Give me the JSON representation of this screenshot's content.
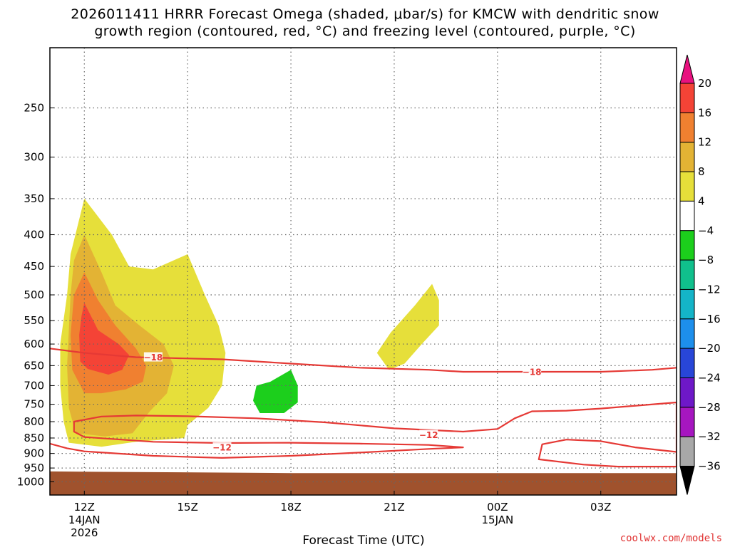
{
  "title_line1": "2026011411 HRRR Forecast Omega (shaded, μbar/s) for KMCW with dendritic snow",
  "title_line2": "growth region (contoured, red, °C) and freezing level (contoured, purple, °C)",
  "chart_data": {
    "type": "time-height cross section",
    "title": "2026011411 HRRR Forecast Omega (shaded, μbar/s) for KMCW with dendritic snow growth region (contoured, red, °C) and freezing level (contoured, purple, °C)",
    "xlabel": "Forecast Time (UTC)",
    "ylabel": "",
    "x_range_hours_since_14JAN_12Z": [
      -1,
      17.2
    ],
    "y_range_mb": [
      200,
      1050
    ],
    "grid": true,
    "x_ticks": [
      {
        "hour": 0,
        "label": "12Z",
        "sub1": "14JAN",
        "sub2": "2026"
      },
      {
        "hour": 3,
        "label": "15Z",
        "sub1": "",
        "sub2": ""
      },
      {
        "hour": 6,
        "label": "18Z",
        "sub1": "",
        "sub2": ""
      },
      {
        "hour": 9,
        "label": "21Z",
        "sub1": "",
        "sub2": ""
      },
      {
        "hour": 12,
        "label": "00Z",
        "sub1": "15JAN",
        "sub2": ""
      },
      {
        "hour": 15,
        "label": "03Z",
        "sub1": "",
        "sub2": ""
      }
    ],
    "y_ticks": [
      250,
      300,
      350,
      400,
      450,
      500,
      550,
      600,
      650,
      700,
      750,
      800,
      850,
      900,
      950,
      1000
    ],
    "colorbar": {
      "labels": [
        "20",
        "16",
        "12",
        "8",
        "4",
        "−4",
        "−8",
        "−12",
        "−16",
        "−20",
        "−24",
        "−28",
        "−32",
        "−36"
      ],
      "colors": [
        "#e8117f",
        "#f44336",
        "#f08030",
        "#e3b334",
        "#e6df3a",
        "#ffffff",
        "#1ccf1c",
        "#10c08c",
        "#14b4c8",
        "#1d8fec",
        "#2846d8",
        "#6e18c8",
        "#a616c0",
        "#a8a8a8",
        "#000000"
      ]
    },
    "omega_regions": [
      {
        "level": "4 to 8",
        "color": "#e6df3a",
        "polygon": [
          [
            0.0,
            350
          ],
          [
            0.8,
            400
          ],
          [
            1.3,
            450
          ],
          [
            2.0,
            455
          ],
          [
            3.0,
            430
          ],
          [
            3.5,
            500
          ],
          [
            3.9,
            560
          ],
          [
            4.1,
            620
          ],
          [
            4.0,
            700
          ],
          [
            3.6,
            760
          ],
          [
            3.0,
            810
          ],
          [
            2.9,
            850
          ],
          [
            1.5,
            862
          ],
          [
            0.5,
            878
          ],
          [
            -0.45,
            865
          ],
          [
            -0.6,
            800
          ],
          [
            -0.7,
            700
          ],
          [
            -0.7,
            600
          ],
          [
            -0.5,
            500
          ],
          [
            -0.4,
            430
          ]
        ]
      },
      {
        "level": "8 to 12",
        "color": "#e3b334",
        "polygon": [
          [
            0.0,
            400
          ],
          [
            0.5,
            460
          ],
          [
            0.9,
            520
          ],
          [
            1.6,
            560
          ],
          [
            2.3,
            600
          ],
          [
            2.6,
            650
          ],
          [
            2.4,
            720
          ],
          [
            1.9,
            770
          ],
          [
            1.4,
            835
          ],
          [
            0.6,
            845
          ],
          [
            -0.25,
            835
          ],
          [
            -0.45,
            760
          ],
          [
            -0.5,
            650
          ],
          [
            -0.4,
            500
          ],
          [
            -0.3,
            440
          ]
        ]
      },
      {
        "level": "12 to 16",
        "color": "#f08030",
        "polygon": [
          [
            0.0,
            460
          ],
          [
            0.4,
            510
          ],
          [
            0.9,
            560
          ],
          [
            1.5,
            610
          ],
          [
            1.8,
            650
          ],
          [
            1.7,
            690
          ],
          [
            1.2,
            710
          ],
          [
            0.5,
            720
          ],
          [
            0.0,
            720
          ],
          [
            -0.35,
            660
          ],
          [
            -0.4,
            580
          ],
          [
            -0.3,
            500
          ]
        ]
      },
      {
        "level": "16 to 20",
        "color": "#f44336",
        "polygon": [
          [
            0.0,
            515
          ],
          [
            0.4,
            570
          ],
          [
            1.0,
            600
          ],
          [
            1.3,
            625
          ],
          [
            1.1,
            660
          ],
          [
            0.7,
            672
          ],
          [
            0.1,
            658
          ],
          [
            -0.12,
            640
          ],
          [
            -0.15,
            580
          ],
          [
            -0.08,
            540
          ]
        ]
      },
      {
        "level": "4 to 8",
        "color": "#e6df3a",
        "polygon": [
          [
            10.1,
            480
          ],
          [
            10.3,
            510
          ],
          [
            10.3,
            560
          ],
          [
            9.8,
            600
          ],
          [
            9.3,
            645
          ],
          [
            8.85,
            660
          ],
          [
            8.5,
            620
          ],
          [
            8.9,
            575
          ],
          [
            9.6,
            520
          ]
        ]
      },
      {
        "level": "-4 to -8",
        "color": "#1ccf1c",
        "polygon": [
          [
            6.0,
            660
          ],
          [
            6.2,
            700
          ],
          [
            6.2,
            745
          ],
          [
            5.8,
            775
          ],
          [
            5.1,
            775
          ],
          [
            4.9,
            740
          ],
          [
            5.0,
            700
          ],
          [
            5.4,
            690
          ]
        ]
      }
    ],
    "ground": {
      "color": "#a0522d",
      "top_mb": [
        [
          -1.0,
          962
        ],
        [
          1.0,
          964
        ],
        [
          6.0,
          968
        ],
        [
          17.2,
          968
        ]
      ]
    },
    "dgz_contours": [
      {
        "label": "−18",
        "label_positions": [
          [
            2.0,
            630
          ],
          [
            13.0,
            665
          ]
        ],
        "points": [
          [
            -1.0,
            610
          ],
          [
            0.0,
            620
          ],
          [
            1.5,
            630
          ],
          [
            2.5,
            632
          ],
          [
            4.0,
            635
          ],
          [
            6.0,
            645
          ],
          [
            8.0,
            655
          ],
          [
            10.0,
            660
          ],
          [
            11.0,
            665
          ],
          [
            13.0,
            665
          ],
          [
            15.0,
            665
          ],
          [
            16.5,
            660
          ],
          [
            17.2,
            655
          ]
        ]
      },
      {
        "label": "−12",
        "label_positions": [
          [
            4.0,
            880
          ],
          [
            10.0,
            840
          ]
        ],
        "points": [
          [
            -1.0,
            868
          ],
          [
            -0.5,
            883
          ],
          [
            0.0,
            893
          ],
          [
            2.0,
            908
          ],
          [
            4.0,
            915
          ],
          [
            6.0,
            908
          ],
          [
            8.0,
            897
          ],
          [
            10.0,
            885
          ],
          [
            11.0,
            880
          ],
          [
            10.0,
            872
          ],
          [
            8.0,
            868
          ],
          [
            6.0,
            865
          ],
          [
            4.0,
            866
          ],
          [
            2.0,
            862
          ],
          [
            0.0,
            847
          ],
          [
            -0.3,
            830
          ],
          [
            -0.3,
            800
          ],
          [
            0.5,
            785
          ],
          [
            1.5,
            782
          ],
          [
            3.0,
            784
          ],
          [
            5.0,
            790
          ],
          [
            7.0,
            802
          ],
          [
            9.0,
            820
          ],
          [
            11.0,
            830
          ],
          [
            12.0,
            822
          ],
          [
            12.5,
            790
          ],
          [
            13.0,
            770
          ],
          [
            14.0,
            768
          ],
          [
            15.0,
            762
          ],
          [
            17.2,
            745
          ],
          [
            17.2,
            945
          ],
          [
            15.5,
            945
          ],
          [
            14.5,
            938
          ],
          [
            13.2,
            920
          ],
          [
            13.3,
            870
          ],
          [
            14.0,
            855
          ],
          [
            15.0,
            860
          ],
          [
            16.0,
            880
          ],
          [
            17.2,
            895
          ]
        ]
      }
    ]
  },
  "credit": "coolwx.com/models"
}
